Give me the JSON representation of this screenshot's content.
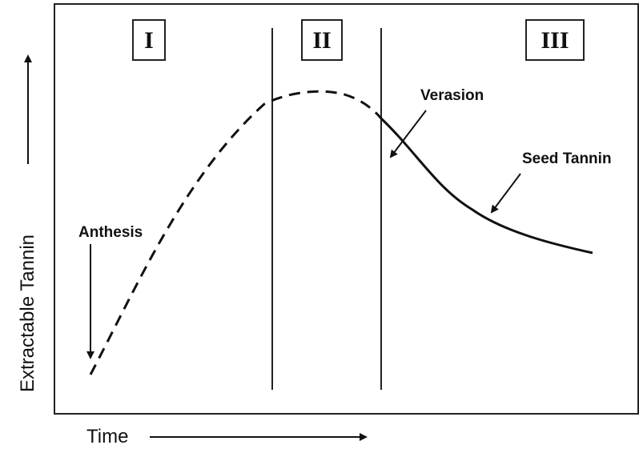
{
  "phases": [
    "I",
    "II",
    "III"
  ],
  "annotations": {
    "anthesis": "Anthesis",
    "verasion": "Verasion",
    "seed_tannin": "Seed Tannin"
  },
  "axes": {
    "y_label": "Extractable Tannin",
    "x_label": "Time"
  }
}
